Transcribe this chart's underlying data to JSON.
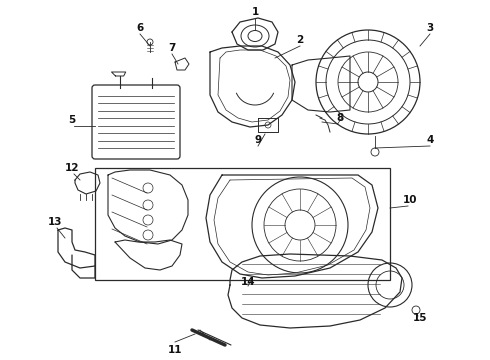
{
  "bg_color": "#ffffff",
  "line_color": "#2a2a2a",
  "label_color": "#111111",
  "fig_w": 4.9,
  "fig_h": 3.6,
  "dpi": 100
}
